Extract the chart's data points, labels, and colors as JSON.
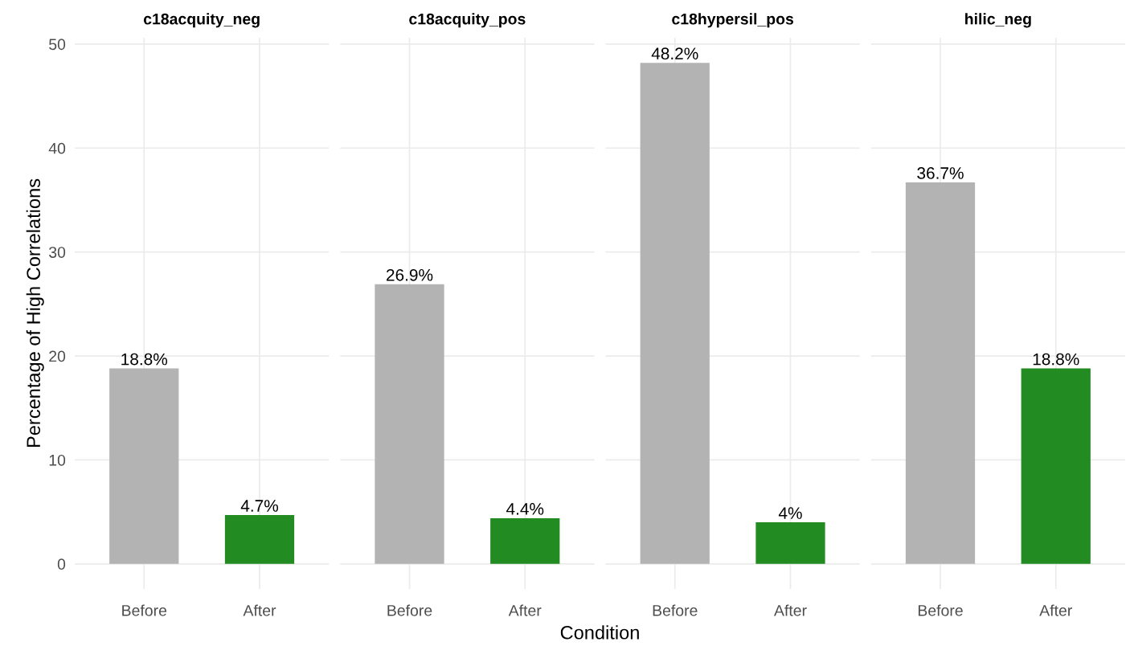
{
  "chart_data": [
    {
      "type": "bar",
      "title": "c18acquity_neg",
      "ylabel": "Percentage of High Correlations",
      "categories": [
        "Before",
        "After"
      ],
      "values": [
        18.8,
        4.7
      ],
      "colors": [
        "#b3b3b3",
        "#228b22"
      ],
      "value_labels": [
        "18.8%",
        "4.7%"
      ],
      "ylim": [
        -2.41,
        50.61
      ],
      "yticks": [
        0,
        10,
        20,
        30,
        40,
        50
      ],
      "grid": true
    },
    {
      "type": "bar",
      "title": "c18acquity_pos",
      "xlabel": "Condition",
      "categories": [
        "Before",
        "After"
      ],
      "values": [
        26.9,
        4.4
      ],
      "colors": [
        "#b3b3b3",
        "#228b22"
      ],
      "value_labels": [
        "26.9%",
        "4.4%"
      ],
      "ylim": [
        -2.41,
        50.61
      ],
      "yticks": [
        0,
        10,
        20,
        30,
        40,
        50
      ],
      "grid": true,
      "tick_labels": "x"
    },
    {
      "type": "bar",
      "title": "c18hypersil_pos",
      "categories": [
        "Before",
        "After"
      ],
      "values": [
        48.2,
        4
      ],
      "colors": [
        "#b3b3b3",
        "#228b22"
      ],
      "value_labels": [
        "48.2%",
        "4%"
      ],
      "ylim": [
        -2.41,
        50.61
      ],
      "yticks": [
        0,
        10,
        20,
        30,
        40,
        50
      ],
      "grid": true,
      "tick_labels": "x"
    },
    {
      "type": "bar",
      "title": "hilic_neg",
      "categories": [
        "Before",
        "After"
      ],
      "values": [
        36.7,
        18.8
      ],
      "colors": [
        "#b3b3b3",
        "#228b22"
      ],
      "value_labels": [
        "36.7%",
        "18.8%"
      ],
      "ylim": [
        -2.41,
        50.61
      ],
      "yticks": [
        0,
        10,
        20,
        30,
        40,
        50
      ],
      "grid": true,
      "tick_labels": "x"
    }
  ]
}
